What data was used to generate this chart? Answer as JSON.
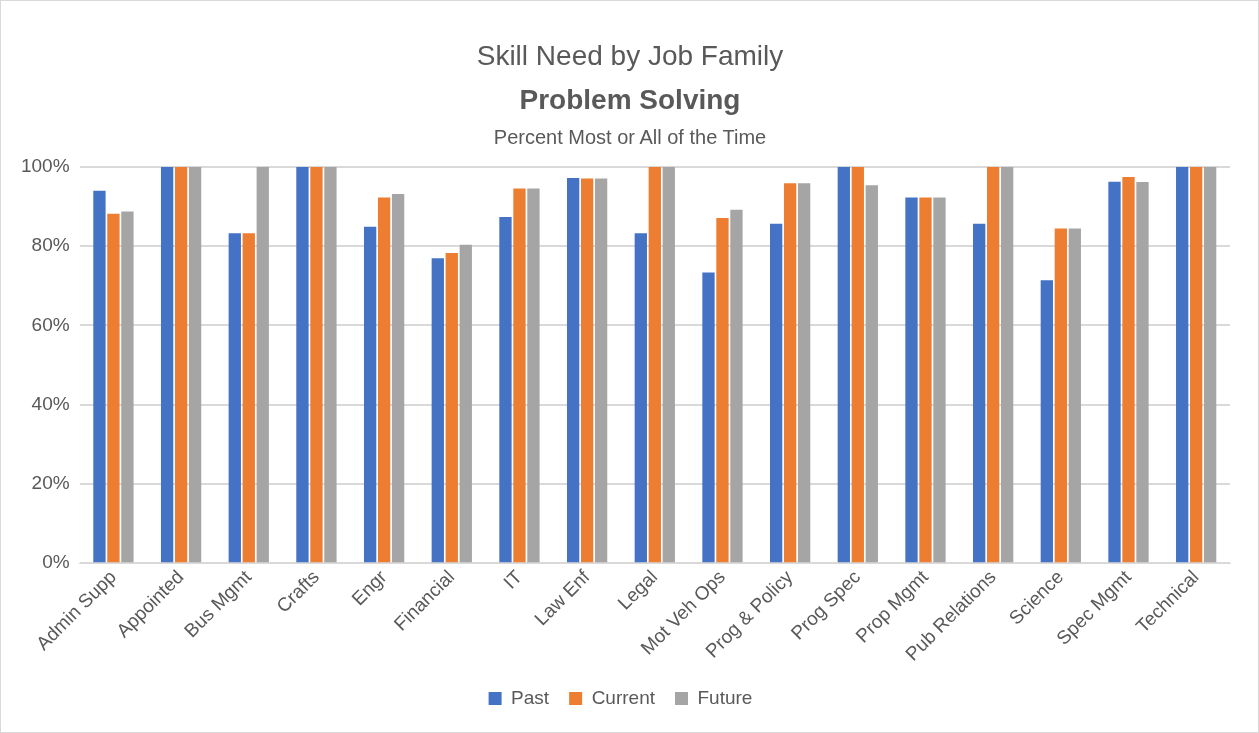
{
  "chart_data": {
    "type": "bar",
    "title": "Skill Need by Job Family",
    "subtitle": "Problem Solving",
    "annotations": [
      "Percent Most or All of the Time"
    ],
    "categories": [
      "Admin Supp",
      "Appointed",
      "Bus Mgmt",
      "Crafts",
      "Engr",
      "Financial",
      "IT",
      "Law Enf",
      "Legal",
      "Mot Veh Ops",
      "Prog & Policy",
      "Prog Spec",
      "Prop Mgmt",
      "Pub Relations",
      "Science",
      "Spec Mgmt",
      "Technical"
    ],
    "series": [
      {
        "name": "Past",
        "color": "#4472c4",
        "values": [
          94.0,
          100,
          83.3,
          100,
          84.9,
          77.0,
          87.4,
          97.2,
          83.3,
          73.4,
          85.7,
          100,
          92.3,
          85.7,
          71.4,
          96.3,
          100
        ]
      },
      {
        "name": "Current",
        "color": "#ed7d31",
        "values": [
          88.2,
          100,
          83.3,
          100,
          92.3,
          78.3,
          94.6,
          97.1,
          100,
          87.1,
          95.9,
          100,
          92.3,
          100,
          84.5,
          97.5,
          100
        ]
      },
      {
        "name": "Future",
        "color": "#a5a5a5",
        "values": [
          88.8,
          100,
          100,
          100,
          93.2,
          80.4,
          94.6,
          97.1,
          100,
          89.2,
          95.9,
          95.4,
          92.3,
          100,
          84.5,
          96.2,
          100
        ]
      }
    ],
    "ylim": [
      0,
      100
    ],
    "yticks": [
      {
        "value": 0,
        "label": "0%"
      },
      {
        "value": 20,
        "label": "20%"
      },
      {
        "value": 40,
        "label": "40%"
      },
      {
        "value": 60,
        "label": "60%"
      },
      {
        "value": 80,
        "label": "80%"
      },
      {
        "value": 100,
        "label": "100%"
      }
    ],
    "grid": "y",
    "legend": "bottom"
  }
}
